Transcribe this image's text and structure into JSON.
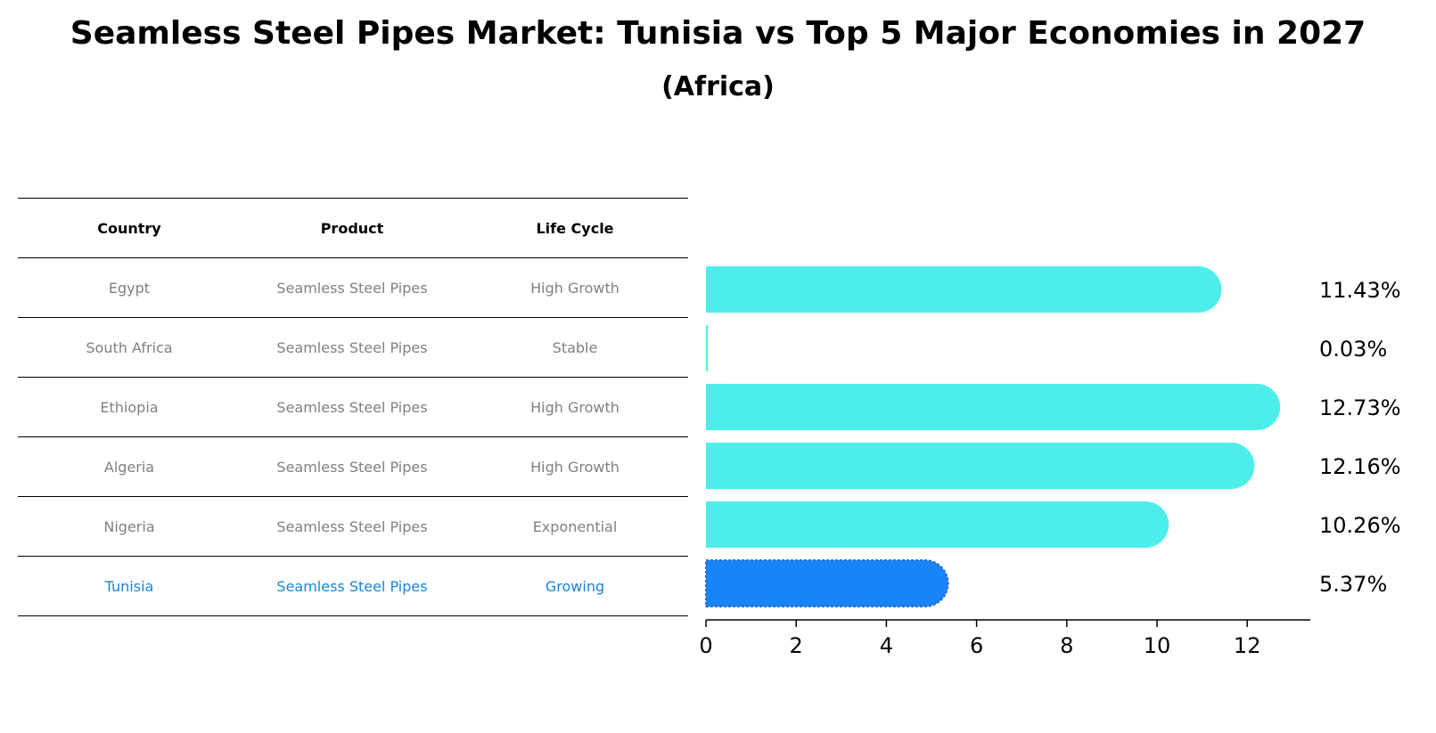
{
  "title": "Seamless Steel Pipes Market: Tunisia vs Top 5 Major Economies in 2027",
  "subtitle": "(Africa)",
  "table": {
    "headers": [
      "Country",
      "Product",
      "Life Cycle"
    ],
    "rows": [
      {
        "country": "Egypt",
        "product": "Seamless Steel Pipes",
        "life_cycle": "High Growth"
      },
      {
        "country": "South Africa",
        "product": "Seamless Steel Pipes",
        "life_cycle": "Stable"
      },
      {
        "country": "Ethiopia",
        "product": "Seamless Steel Pipes",
        "life_cycle": "High Growth"
      },
      {
        "country": "Algeria",
        "product": "Seamless Steel Pipes",
        "life_cycle": "High Growth"
      },
      {
        "country": "Nigeria",
        "product": "Seamless Steel Pipes",
        "life_cycle": "Exponential"
      },
      {
        "country": "Tunisia",
        "product": "Seamless Steel Pipes",
        "life_cycle": "Growing"
      }
    ],
    "highlight_row": 5
  },
  "chart_data": {
    "type": "bar",
    "orientation": "horizontal",
    "categories": [
      "Egypt",
      "South Africa",
      "Ethiopia",
      "Algeria",
      "Nigeria",
      "Tunisia"
    ],
    "values": [
      11.43,
      0.03,
      12.73,
      12.16,
      10.26,
      5.37
    ],
    "value_labels": [
      "11.43%",
      "0.03%",
      "12.73%",
      "12.16%",
      "10.26%",
      "5.37%"
    ],
    "xlim": [
      0,
      13.4
    ],
    "xticks": [
      0,
      2,
      4,
      6,
      8,
      10,
      12
    ],
    "grid": false,
    "colors": {
      "default": "#4deeea",
      "highlight": "#1984f6",
      "highlight_edge": "#2a6fd8",
      "axis": "#000000",
      "text": "#000000",
      "table_text": "#808080",
      "table_highlight": "#1a85d6"
    }
  }
}
